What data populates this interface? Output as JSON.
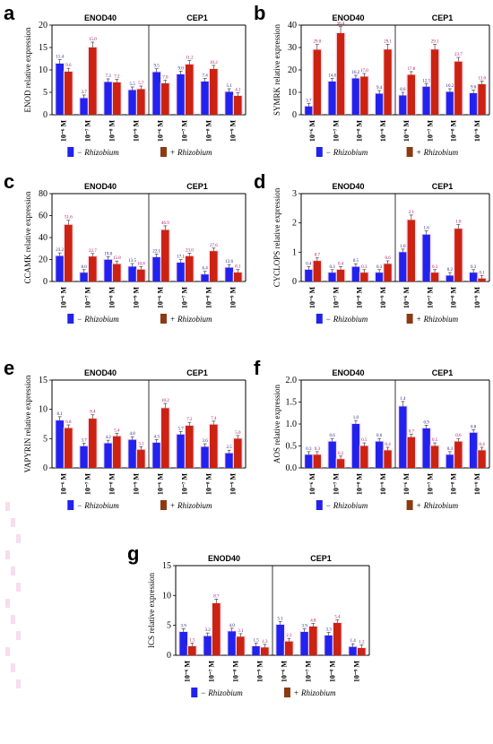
{
  "colors": {
    "minus": "#2222ee",
    "plus": "#cc2211",
    "error": "#444444",
    "legend_minus": "#2222ee",
    "legend_plus": "#8b3a12"
  },
  "legend": {
    "minus_prefix": "−",
    "minus_name": "Rhizobium",
    "plus_prefix": "+",
    "plus_name": "Rhizobium"
  },
  "chart_data": [
    {
      "type": "bar",
      "panel": "a",
      "ylabel": "ENOD relative expression",
      "ylim": [
        0,
        20
      ],
      "yticks": [
        0,
        5,
        10,
        15,
        20
      ],
      "group_titles": [
        "ENOD40",
        "CEP1"
      ],
      "categories": [
        "10⁻⁶ M",
        "10⁻⁷ M",
        "10⁻⁸ M",
        "10⁻⁹ M",
        "10⁻⁶ M",
        "10⁻⁷ M",
        "10⁻⁸ M",
        "10⁻⁹ M"
      ],
      "series": [
        {
          "name": "− Rhizobium",
          "values": [
            11.4,
            3.7,
            7.3,
            5.5,
            9.5,
            9.0,
            7.4,
            5.1
          ],
          "labels": [
            "11.4",
            "3.7",
            "7.3",
            "5.5",
            "9.5",
            "9.0",
            "7.4",
            "5.1"
          ]
        },
        {
          "name": "+ Rhizobium",
          "values": [
            9.6,
            15.0,
            7.2,
            5.7,
            7.0,
            11.2,
            10.2,
            4.2
          ],
          "labels": [
            "9.6",
            "15.0",
            "7.2",
            "5.7",
            "7.0",
            "11.2",
            "10.2",
            "4.2"
          ]
        }
      ],
      "grid": false
    },
    {
      "type": "bar",
      "panel": "b",
      "ylabel": "SYMRK relative expression",
      "ylim": [
        0,
        40
      ],
      "yticks": [
        0,
        10,
        20,
        30,
        40
      ],
      "group_titles": [
        "ENOD40",
        "CEP1"
      ],
      "categories": [
        "10⁻⁶ M",
        "10⁻⁷ M",
        "10⁻⁸ M",
        "10⁻⁹ M",
        "10⁻⁶ M",
        "10⁻⁷ M",
        "10⁻⁸ M",
        "10⁻⁹ M"
      ],
      "series": [
        {
          "name": "− Rhizobium",
          "values": [
            3.7,
            14.8,
            16.2,
            9.4,
            8.6,
            12.5,
            10.2,
            9.6
          ],
          "labels": [
            "3.7",
            "14.8",
            "16.2",
            "9.4",
            "8.6",
            "12.5",
            "10.2",
            "9.6"
          ]
        },
        {
          "name": "+ Rhizobium",
          "values": [
            29.0,
            36.4,
            17.0,
            29.1,
            17.8,
            29.1,
            23.7,
            13.6
          ],
          "labels": [
            "29.0",
            "36.4",
            "17.0",
            "29.1",
            "17.8",
            "29.1",
            "23.7",
            "13.6"
          ]
        }
      ],
      "grid": false
    },
    {
      "type": "bar",
      "panel": "c",
      "ylabel": "CCAMK relative expression",
      "ylim": [
        0,
        80
      ],
      "yticks": [
        0,
        20,
        40,
        60,
        80
      ],
      "group_titles": [
        "ENOD40",
        "CEP1"
      ],
      "categories": [
        "10⁻⁶ M",
        "10⁻⁷ M",
        "10⁻⁸ M",
        "10⁻⁹ M",
        "10⁻⁶ M",
        "10⁻⁷ M",
        "10⁻⁸ M",
        "10⁻⁹ M"
      ],
      "series": [
        {
          "name": "− Rhizobium",
          "values": [
            23.2,
            8.0,
            19.8,
            13.5,
            22.1,
            17.1,
            6.4,
            12.6
          ],
          "labels": [
            "23.2",
            "8.0",
            "19.8",
            "13.5",
            "22.1",
            "17.1",
            "6.4",
            "12.6"
          ]
        },
        {
          "name": "+ Rhizobium",
          "values": [
            51.6,
            22.7,
            15.8,
            10.8,
            46.9,
            23.0,
            27.6,
            8.1
          ],
          "labels": [
            "51.6",
            "22.7",
            "15.8",
            "10.8",
            "46.9",
            "23.0",
            "27.6",
            "8.1"
          ]
        }
      ],
      "grid": false
    },
    {
      "type": "bar",
      "panel": "d",
      "ylabel": "CYCLOPS relative expression",
      "ylim": [
        0,
        3
      ],
      "yticks": [
        0,
        1,
        2,
        3
      ],
      "group_titles": [
        "ENOD40",
        "CEP1"
      ],
      "categories": [
        "10⁻⁶ M",
        "10⁻⁷ M",
        "10⁻⁸ M",
        "10⁻⁹ M",
        "10⁻⁶ M",
        "10⁻⁷ M",
        "10⁻⁸ M",
        "10⁻⁹ M"
      ],
      "series": [
        {
          "name": "− Rhizobium",
          "values": [
            0.4,
            0.3,
            0.5,
            0.3,
            1.0,
            1.6,
            0.2,
            0.3
          ],
          "labels": [
            "0.4",
            "0.3",
            "0.5",
            "0.3",
            "1.0",
            "1.6",
            "0.2",
            "0.3"
          ]
        },
        {
          "name": "+ Rhizobium",
          "values": [
            0.7,
            0.4,
            0.3,
            0.6,
            2.1,
            0.3,
            1.8,
            0.1
          ],
          "labels": [
            "0.7",
            "0.4",
            "0.3",
            "0.6",
            "2.1",
            "0.3",
            "1.8",
            "0.1"
          ]
        }
      ],
      "grid": false
    },
    {
      "type": "bar",
      "panel": "e",
      "ylabel": "VAPYRIN relative expression",
      "ylim": [
        0,
        15
      ],
      "yticks": [
        0,
        5,
        10,
        15
      ],
      "group_titles": [
        "ENOD40",
        "CEP1"
      ],
      "categories": [
        "10⁻⁶ M",
        "10⁻⁷ M",
        "10⁻⁸ M",
        "10⁻⁹ M",
        "10⁻⁶ M",
        "10⁻⁷ M",
        "10⁻⁸ M",
        "10⁻⁹ M"
      ],
      "series": [
        {
          "name": "− Rhizobium",
          "values": [
            8.1,
            3.7,
            4.2,
            4.8,
            4.3,
            5.7,
            3.6,
            2.5
          ],
          "labels": [
            "8.1",
            "3.7",
            "4.2",
            "4.8",
            "4.3",
            "5.7",
            "3.6",
            "2.5"
          ]
        },
        {
          "name": "+ Rhizobium",
          "values": [
            6.8,
            8.4,
            5.4,
            3.1,
            10.2,
            7.2,
            7.4,
            5.0
          ],
          "labels": [
            "6.8",
            "8.4",
            "5.4",
            "3.1",
            "10.2",
            "7.2",
            "7.4",
            "5.0"
          ]
        }
      ],
      "grid": false
    },
    {
      "type": "bar",
      "panel": "f",
      "ylabel": "AOS relative expression",
      "ylim": [
        0,
        2
      ],
      "yticks": [
        0.0,
        0.5,
        1.0,
        1.5,
        2.0
      ],
      "group_titles": [
        "ENOD40",
        "CEP1"
      ],
      "categories": [
        "10⁻⁶ M",
        "10⁻⁷ M",
        "10⁻⁸ M",
        "10⁻⁹ M",
        "10⁻⁶ M",
        "10⁻⁷ M",
        "10⁻⁸ M",
        "10⁻⁹ M"
      ],
      "series": [
        {
          "name": "− Rhizobium",
          "values": [
            0.3,
            0.6,
            1.0,
            0.6,
            1.4,
            0.9,
            0.3,
            0.8
          ],
          "labels": [
            "0.3",
            "0.6",
            "1.0",
            "0.6",
            "1.4",
            "0.9",
            "0.3",
            "0.8"
          ]
        },
        {
          "name": "+ Rhizobium",
          "values": [
            0.3,
            0.2,
            0.5,
            0.4,
            0.7,
            0.5,
            0.6,
            0.4
          ],
          "labels": [
            "0.3",
            "0.2",
            "0.5",
            "0.4",
            "0.7",
            "0.5",
            "0.6",
            "0.4"
          ]
        }
      ],
      "grid": false
    },
    {
      "type": "bar",
      "panel": "g",
      "ylabel": "ICS relative expression",
      "ylim": [
        0,
        15
      ],
      "yticks": [
        0,
        5,
        10,
        15
      ],
      "group_titles": [
        "ENOD40",
        "CEP1"
      ],
      "categories": [
        "10⁻⁶ M",
        "10⁻⁷ M",
        "10⁻⁸ M",
        "10⁻⁹ M",
        "10⁻⁶ M",
        "10⁻⁷ M",
        "10⁻⁸ M",
        "10⁻⁹ M"
      ],
      "series": [
        {
          "name": "− Rhizobium",
          "values": [
            3.9,
            3.2,
            4.0,
            1.5,
            5.1,
            3.9,
            3.3,
            1.4
          ],
          "labels": [
            "3.9",
            "3.2",
            "4.0",
            "1.5",
            "5.1",
            "3.9",
            "3.3",
            "1.4"
          ]
        },
        {
          "name": "+ Rhizobium",
          "values": [
            1.5,
            8.7,
            3.1,
            1.3,
            2.3,
            4.8,
            5.4,
            1.2
          ],
          "labels": [
            "1.5",
            "8.7",
            "3.1",
            "1.3",
            "2.3",
            "4.8",
            "5.4",
            "1.2"
          ]
        }
      ],
      "grid": false
    }
  ]
}
